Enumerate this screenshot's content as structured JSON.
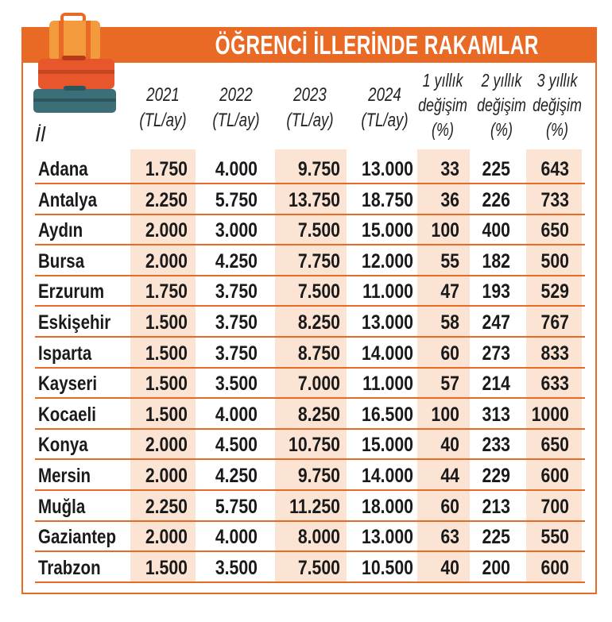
{
  "title": "ÖĞRENCİ İLLERİNDE RAKAMLAR",
  "colors": {
    "accent": "#e86a24",
    "shade": "#fbe4d4",
    "text": "#1a1a1a"
  },
  "icon": "suitcase-stack-icon",
  "headers": {
    "il": "İl",
    "y2021": [
      "2021",
      "(TL/ay)"
    ],
    "y2022": [
      "2022",
      "(TL/ay)"
    ],
    "y2023": [
      "2023",
      "(TL/ay)"
    ],
    "y2024": [
      "2024",
      "(TL/ay)"
    ],
    "ch1": [
      "1 yıllık",
      "değişim",
      "(%)"
    ],
    "ch2": [
      "2 yıllık",
      "değişim",
      "(%)"
    ],
    "ch3": [
      "3 yıllık",
      "değişim",
      "(%)"
    ]
  },
  "rows": [
    [
      "Adana",
      "1.750",
      "4.000",
      "9.750",
      "13.000",
      "33",
      "225",
      "643"
    ],
    [
      "Antalya",
      "2.250",
      "5.750",
      "13.750",
      "18.750",
      "36",
      "226",
      "733"
    ],
    [
      "Aydın",
      "2.000",
      "3.000",
      "7.500",
      "15.000",
      "100",
      "400",
      "650"
    ],
    [
      "Bursa",
      "2.000",
      "4.250",
      "7.750",
      "12.000",
      "55",
      "182",
      "500"
    ],
    [
      "Erzurum",
      "1.750",
      "3.750",
      "7.500",
      "11.000",
      "47",
      "193",
      "529"
    ],
    [
      "Eskişehir",
      "1.500",
      "3.750",
      "8.250",
      "13.000",
      "58",
      "247",
      "767"
    ],
    [
      "Isparta",
      "1.500",
      "3.750",
      "8.750",
      "14.000",
      "60",
      "273",
      "833"
    ],
    [
      "Kayseri",
      "1.500",
      "3.500",
      "7.000",
      "11.000",
      "57",
      "214",
      "633"
    ],
    [
      "Kocaeli",
      "1.500",
      "4.000",
      "8.250",
      "16.500",
      "100",
      "313",
      "1000"
    ],
    [
      "Konya",
      "2.000",
      "4.500",
      "10.750",
      "15.000",
      "40",
      "233",
      "650"
    ],
    [
      "Mersin",
      "2.000",
      "4.250",
      "9.750",
      "14.000",
      "44",
      "229",
      "600"
    ],
    [
      "Muğla",
      "2.250",
      "5.750",
      "11.250",
      "18.000",
      "60",
      "213",
      "700"
    ],
    [
      "Gaziantep",
      "2.000",
      "4.000",
      "8.000",
      "13.000",
      "63",
      "225",
      "550"
    ],
    [
      "Trabzon",
      "1.500",
      "3.500",
      "7.500",
      "10.500",
      "40",
      "200",
      "600"
    ]
  ]
}
